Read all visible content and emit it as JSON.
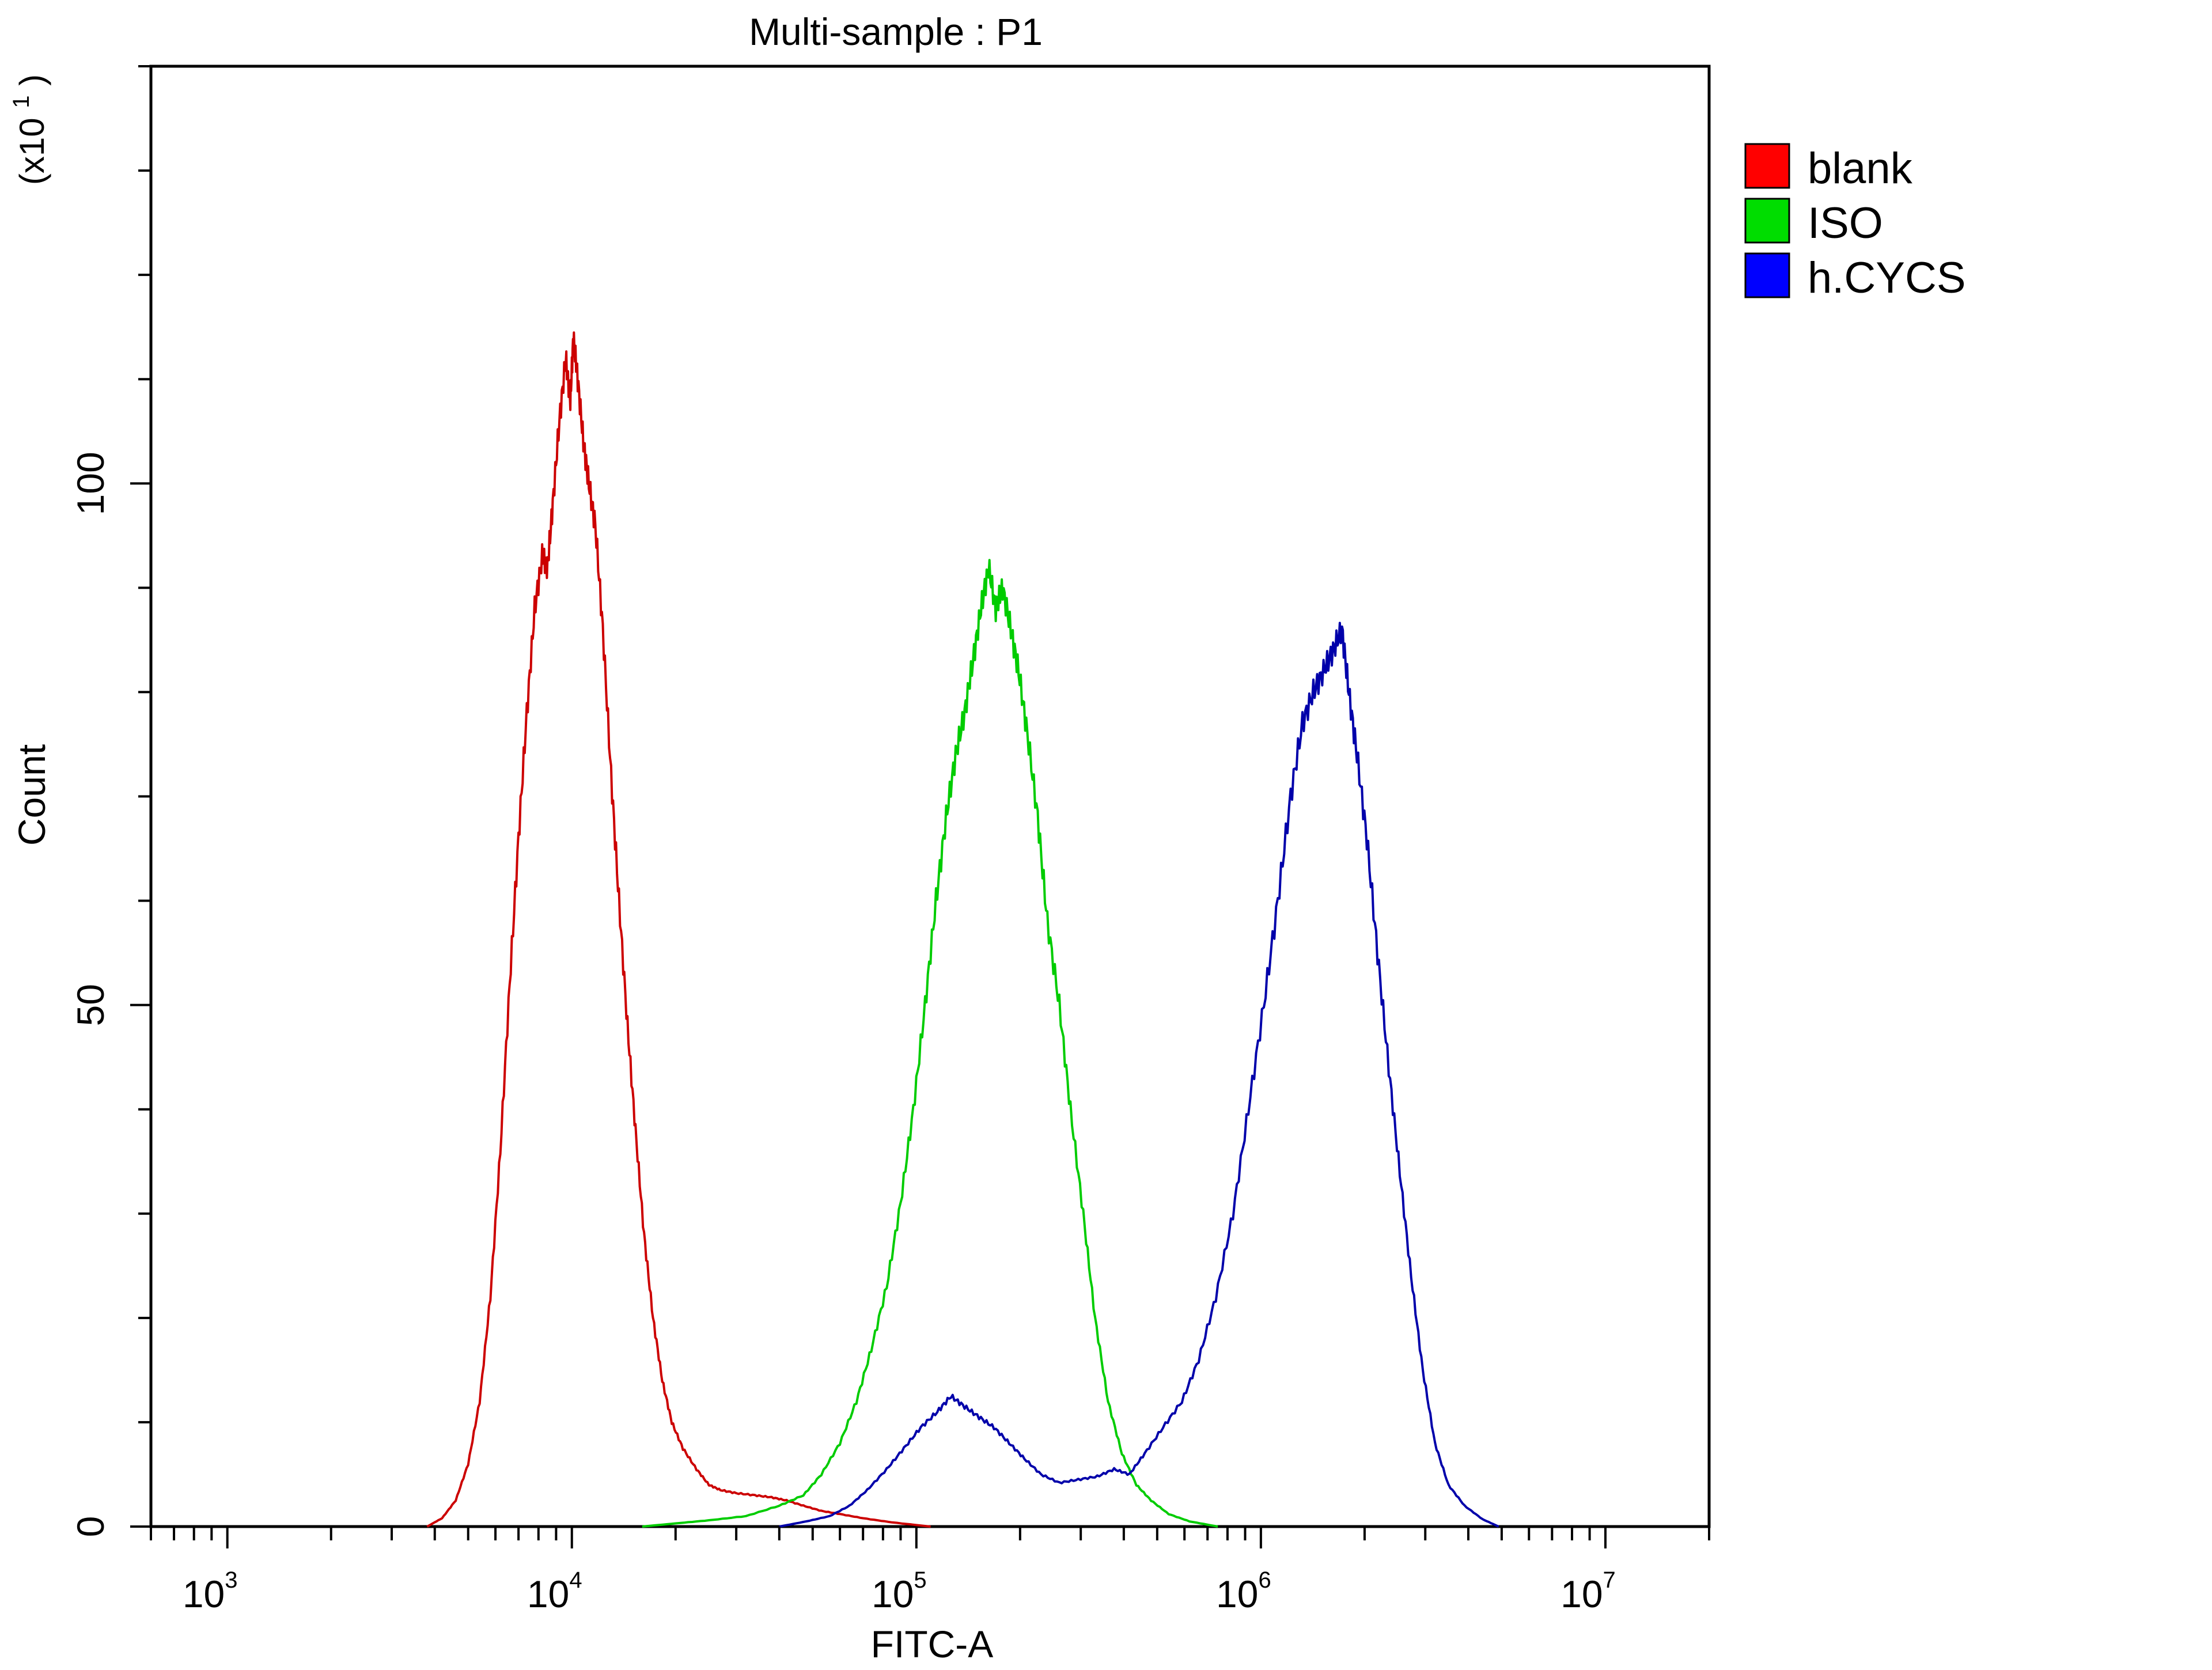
{
  "chart_data": {
    "type": "line",
    "title": "Multi-sample : P1",
    "xlabel": "FITC-A",
    "ylabel": "Count",
    "y_multiplier": {
      "prefix": "(x10",
      "exponent": "1",
      "suffix": ")"
    },
    "x_scale": "log",
    "xlim": [
      600,
      20000000
    ],
    "ylim": [
      0,
      140
    ],
    "x_ticks": [
      {
        "value": 1000,
        "base": "10",
        "exponent": "3"
      },
      {
        "value": 10000,
        "base": "10",
        "exponent": "4"
      },
      {
        "value": 100000,
        "base": "10",
        "exponent": "5"
      },
      {
        "value": 1000000,
        "base": "10",
        "exponent": "6"
      },
      {
        "value": 10000000,
        "base": "10",
        "exponent": "7"
      }
    ],
    "y_ticks": [
      {
        "value": 0,
        "label": "0"
      },
      {
        "value": 50,
        "label": "50"
      },
      {
        "value": 100,
        "label": "100"
      }
    ],
    "legend_position": "top-right",
    "series": [
      {
        "name": "blank",
        "color": "#ff0000",
        "line_color": "#cc0000",
        "points": [
          [
            3800,
            0
          ],
          [
            4200,
            0.8
          ],
          [
            4600,
            2.5
          ],
          [
            5000,
            6
          ],
          [
            5400,
            12
          ],
          [
            5800,
            22
          ],
          [
            6200,
            36
          ],
          [
            6600,
            52
          ],
          [
            7000,
            66
          ],
          [
            7400,
            78
          ],
          [
            7800,
            88
          ],
          [
            8200,
            93
          ],
          [
            8500,
            92
          ],
          [
            8800,
            98
          ],
          [
            9200,
            106
          ],
          [
            9600,
            112
          ],
          [
            9900,
            108
          ],
          [
            10100,
            114
          ],
          [
            10400,
            110
          ],
          [
            10800,
            104
          ],
          [
            11200,
            100
          ],
          [
            11700,
            96
          ],
          [
            12300,
            86
          ],
          [
            13000,
            72
          ],
          [
            13700,
            60
          ],
          [
            14500,
            48
          ],
          [
            15300,
            38
          ],
          [
            16200,
            28
          ],
          [
            17200,
            20
          ],
          [
            18300,
            14
          ],
          [
            19500,
            10
          ],
          [
            21000,
            7.5
          ],
          [
            23000,
            5.5
          ],
          [
            25000,
            4
          ],
          [
            27000,
            3.5
          ],
          [
            30000,
            3.2
          ],
          [
            34000,
            3
          ],
          [
            38000,
            2.8
          ],
          [
            42000,
            2.5
          ],
          [
            47000,
            2
          ],
          [
            53000,
            1.5
          ],
          [
            60000,
            1.2
          ],
          [
            70000,
            0.8
          ],
          [
            85000,
            0.4
          ],
          [
            110000,
            0
          ]
        ]
      },
      {
        "name": "ISO",
        "color": "#00dd00",
        "line_color": "#00cc00",
        "points": [
          [
            16000,
            0
          ],
          [
            20000,
            0.3
          ],
          [
            25000,
            0.6
          ],
          [
            32000,
            1
          ],
          [
            40000,
            2
          ],
          [
            47000,
            3
          ],
          [
            53000,
            5
          ],
          [
            60000,
            8
          ],
          [
            67000,
            12
          ],
          [
            74000,
            17
          ],
          [
            82000,
            23
          ],
          [
            90000,
            31
          ],
          [
            98000,
            40
          ],
          [
            106000,
            50
          ],
          [
            114000,
            60
          ],
          [
            122000,
            68
          ],
          [
            130000,
            74
          ],
          [
            138000,
            78
          ],
          [
            146000,
            83
          ],
          [
            154000,
            88
          ],
          [
            162000,
            92
          ],
          [
            170000,
            88
          ],
          [
            178000,
            90
          ],
          [
            188000,
            86
          ],
          [
            198000,
            82
          ],
          [
            210000,
            76
          ],
          [
            225000,
            68
          ],
          [
            240000,
            58
          ],
          [
            260000,
            50
          ],
          [
            280000,
            40
          ],
          [
            305000,
            30
          ],
          [
            330000,
            20
          ],
          [
            360000,
            12
          ],
          [
            395000,
            7
          ],
          [
            435000,
            4
          ],
          [
            480000,
            2.5
          ],
          [
            540000,
            1.2
          ],
          [
            620000,
            0.5
          ],
          [
            750000,
            0
          ]
        ]
      },
      {
        "name": "h.CYCS",
        "color": "#0000ff",
        "line_color": "#0000aa",
        "points": [
          [
            40000,
            0
          ],
          [
            48000,
            0.5
          ],
          [
            56000,
            1
          ],
          [
            64000,
            2
          ],
          [
            72000,
            3.5
          ],
          [
            82000,
            5.5
          ],
          [
            92000,
            7.5
          ],
          [
            103000,
            9.5
          ],
          [
            115000,
            11
          ],
          [
            126000,
            12.5
          ],
          [
            138000,
            11.5
          ],
          [
            152000,
            10.5
          ],
          [
            168000,
            9.5
          ],
          [
            186000,
            8
          ],
          [
            206000,
            6.5
          ],
          [
            230000,
            5
          ],
          [
            260000,
            4.2
          ],
          [
            295000,
            4.5
          ],
          [
            335000,
            4.8
          ],
          [
            375000,
            5.5
          ],
          [
            415000,
            5
          ],
          [
            460000,
            7
          ],
          [
            520000,
            9.5
          ],
          [
            590000,
            12
          ],
          [
            660000,
            16
          ],
          [
            740000,
            22
          ],
          [
            830000,
            30
          ],
          [
            920000,
            40
          ],
          [
            1020000,
            50
          ],
          [
            1120000,
            60
          ],
          [
            1220000,
            70
          ],
          [
            1320000,
            77
          ],
          [
            1420000,
            80
          ],
          [
            1520000,
            82
          ],
          [
            1620000,
            84
          ],
          [
            1720000,
            86
          ],
          [
            1800000,
            80
          ],
          [
            1900000,
            74
          ],
          [
            2030000,
            66
          ],
          [
            2180000,
            55
          ],
          [
            2350000,
            44
          ],
          [
            2530000,
            34
          ],
          [
            2730000,
            24
          ],
          [
            2950000,
            15
          ],
          [
            3200000,
            8
          ],
          [
            3500000,
            4
          ],
          [
            3900000,
            2
          ],
          [
            4400000,
            0.7
          ],
          [
            4900000,
            0
          ]
        ]
      }
    ]
  }
}
